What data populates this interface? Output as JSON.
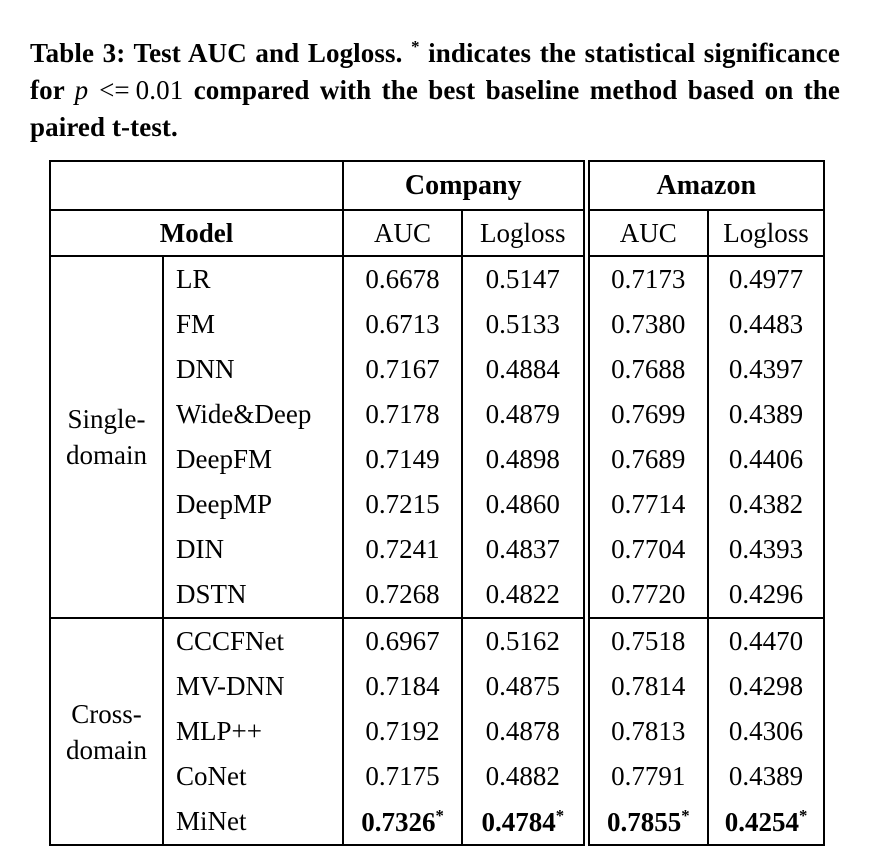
{
  "caption": {
    "prefix": "Table 3: Test AUC and Logloss.",
    "star": "*",
    "middle": "indicates the statistical significance for",
    "math": {
      "var": "p",
      "op": "<=",
      "value": "0.01"
    },
    "suffix": "compared with the best baseline method based on the paired t-test."
  },
  "table": {
    "datasets": [
      "Company",
      "Amazon"
    ],
    "col_headers": {
      "model": "Model",
      "auc": "AUC",
      "logloss": "Logloss"
    },
    "groups": [
      {
        "label": "Single-domain",
        "rows": [
          {
            "model": "LR",
            "values": [
              "0.6678",
              "0.5147",
              "0.7173",
              "0.4977"
            ]
          },
          {
            "model": "FM",
            "values": [
              "0.6713",
              "0.5133",
              "0.7380",
              "0.4483"
            ]
          },
          {
            "model": "DNN",
            "values": [
              "0.7167",
              "0.4884",
              "0.7688",
              "0.4397"
            ]
          },
          {
            "model": "Wide&Deep",
            "values": [
              "0.7178",
              "0.4879",
              "0.7699",
              "0.4389"
            ]
          },
          {
            "model": "DeepFM",
            "values": [
              "0.7149",
              "0.4898",
              "0.7689",
              "0.4406"
            ]
          },
          {
            "model": "DeepMP",
            "values": [
              "0.7215",
              "0.4860",
              "0.7714",
              "0.4382"
            ]
          },
          {
            "model": "DIN",
            "values": [
              "0.7241",
              "0.4837",
              "0.7704",
              "0.4393"
            ]
          },
          {
            "model": "DSTN",
            "values": [
              "0.7268",
              "0.4822",
              "0.7720",
              "0.4296"
            ]
          }
        ]
      },
      {
        "label": "Cross-domain",
        "rows": [
          {
            "model": "CCCFNet",
            "values": [
              "0.6967",
              "0.5162",
              "0.7518",
              "0.4470"
            ]
          },
          {
            "model": "MV-DNN",
            "values": [
              "0.7184",
              "0.4875",
              "0.7814",
              "0.4298"
            ]
          },
          {
            "model": "MLP++",
            "values": [
              "0.7192",
              "0.4878",
              "0.7813",
              "0.4306"
            ]
          },
          {
            "model": "CoNet",
            "values": [
              "0.7175",
              "0.4882",
              "0.7791",
              "0.4389"
            ]
          },
          {
            "model": "MiNet",
            "values": [
              "0.7326",
              "0.4784",
              "0.7855",
              "0.4254"
            ],
            "significant": true,
            "star": "*"
          }
        ]
      }
    ]
  }
}
